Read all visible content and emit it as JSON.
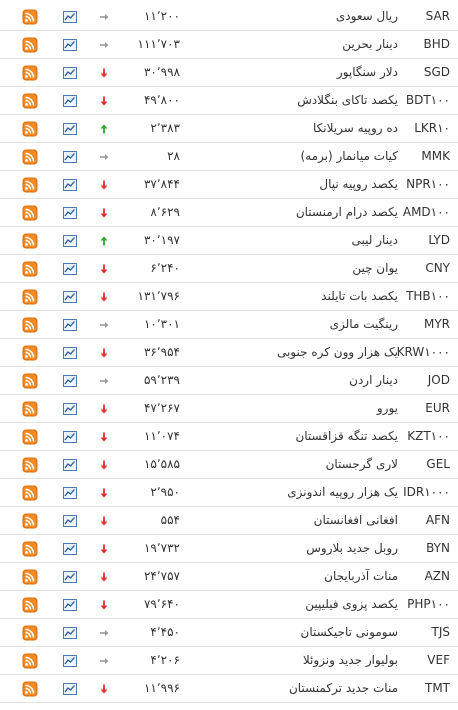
{
  "table": {
    "rows": [
      {
        "code": "SAR",
        "name": "ریال سعودی",
        "price": "۱۱٬۲۰۰",
        "trend": "neutral"
      },
      {
        "code": "BHD",
        "name": "دینار بحرین",
        "price": "۱۱۱٬۷۰۳",
        "trend": "neutral"
      },
      {
        "code": "SGD",
        "name": "دلار سنگاپور",
        "price": "۳۰٬۹۹۸",
        "trend": "down"
      },
      {
        "code": "BDT۱۰۰",
        "name": "یکصد تاکای بنگلادش",
        "price": "۴۹٬۸۰۰",
        "trend": "down"
      },
      {
        "code": "LKR۱۰",
        "name": "ده روپیه سریلانکا",
        "price": "۲٬۳۸۳",
        "trend": "up"
      },
      {
        "code": "MMK",
        "name": "کیات میانمار (برمه)",
        "price": "۲۸",
        "trend": "neutral"
      },
      {
        "code": "NPR۱۰۰",
        "name": "یکصد روپیه نپال",
        "price": "۳۷٬۸۴۴",
        "trend": "down"
      },
      {
        "code": "AMD۱۰۰",
        "name": "یکصد درام ارمنستان",
        "price": "۸٬۶۲۹",
        "trend": "down"
      },
      {
        "code": "LYD",
        "name": "دینار لیبی",
        "price": "۳۰٬۱۹۷",
        "trend": "up"
      },
      {
        "code": "CNY",
        "name": "یوان چین",
        "price": "۶٬۲۴۰",
        "trend": "down"
      },
      {
        "code": "THB۱۰۰",
        "name": "یکصد بات تایلند",
        "price": "۱۳۱٬۷۹۶",
        "trend": "down"
      },
      {
        "code": "MYR",
        "name": "رینگیت مالزی",
        "price": "۱۰٬۳۰۱",
        "trend": "neutral"
      },
      {
        "code": "KRW۱۰۰۰",
        "name": "یک هزار وون کره جنوبی",
        "price": "۳۶٬۹۵۴",
        "trend": "down"
      },
      {
        "code": "JOD",
        "name": "دینار اردن",
        "price": "۵۹٬۲۳۹",
        "trend": "neutral"
      },
      {
        "code": "EUR",
        "name": "یورو",
        "price": "۴۷٬۲۶۷",
        "trend": "down"
      },
      {
        "code": "KZT۱۰۰",
        "name": "یکصد تنگه قزاقستان",
        "price": "۱۱٬۰۷۴",
        "trend": "down"
      },
      {
        "code": "GEL",
        "name": "لاری گرجستان",
        "price": "۱۵٬۵۸۵",
        "trend": "down"
      },
      {
        "code": "IDR۱۰۰۰",
        "name": "یک هزار روپیه اندونزی",
        "price": "۲٬۹۵۰",
        "trend": "down"
      },
      {
        "code": "AFN",
        "name": "افغانی افغانستان",
        "price": "۵۵۴",
        "trend": "down"
      },
      {
        "code": "BYN",
        "name": "روبل جدید بلاروس",
        "price": "۱۹٬۷۳۲",
        "trend": "down"
      },
      {
        "code": "AZN",
        "name": "منات آذربایجان",
        "price": "۲۴٬۷۵۷",
        "trend": "down"
      },
      {
        "code": "PHP۱۰۰",
        "name": "یکصد پزوی فیلیپین",
        "price": "۷۹٬۶۴۰",
        "trend": "down"
      },
      {
        "code": "TJS",
        "name": "سومونی تاجیکستان",
        "price": "۴٬۴۵۰",
        "trend": "neutral"
      },
      {
        "code": "VEF",
        "name": "بولیوار جدید ونزوئلا",
        "price": "۴٬۲۰۶",
        "trend": "neutral"
      },
      {
        "code": "TMT",
        "name": "منات جدید ترکمنستان",
        "price": "۱۱٬۹۹۶",
        "trend": "down"
      }
    ]
  }
}
